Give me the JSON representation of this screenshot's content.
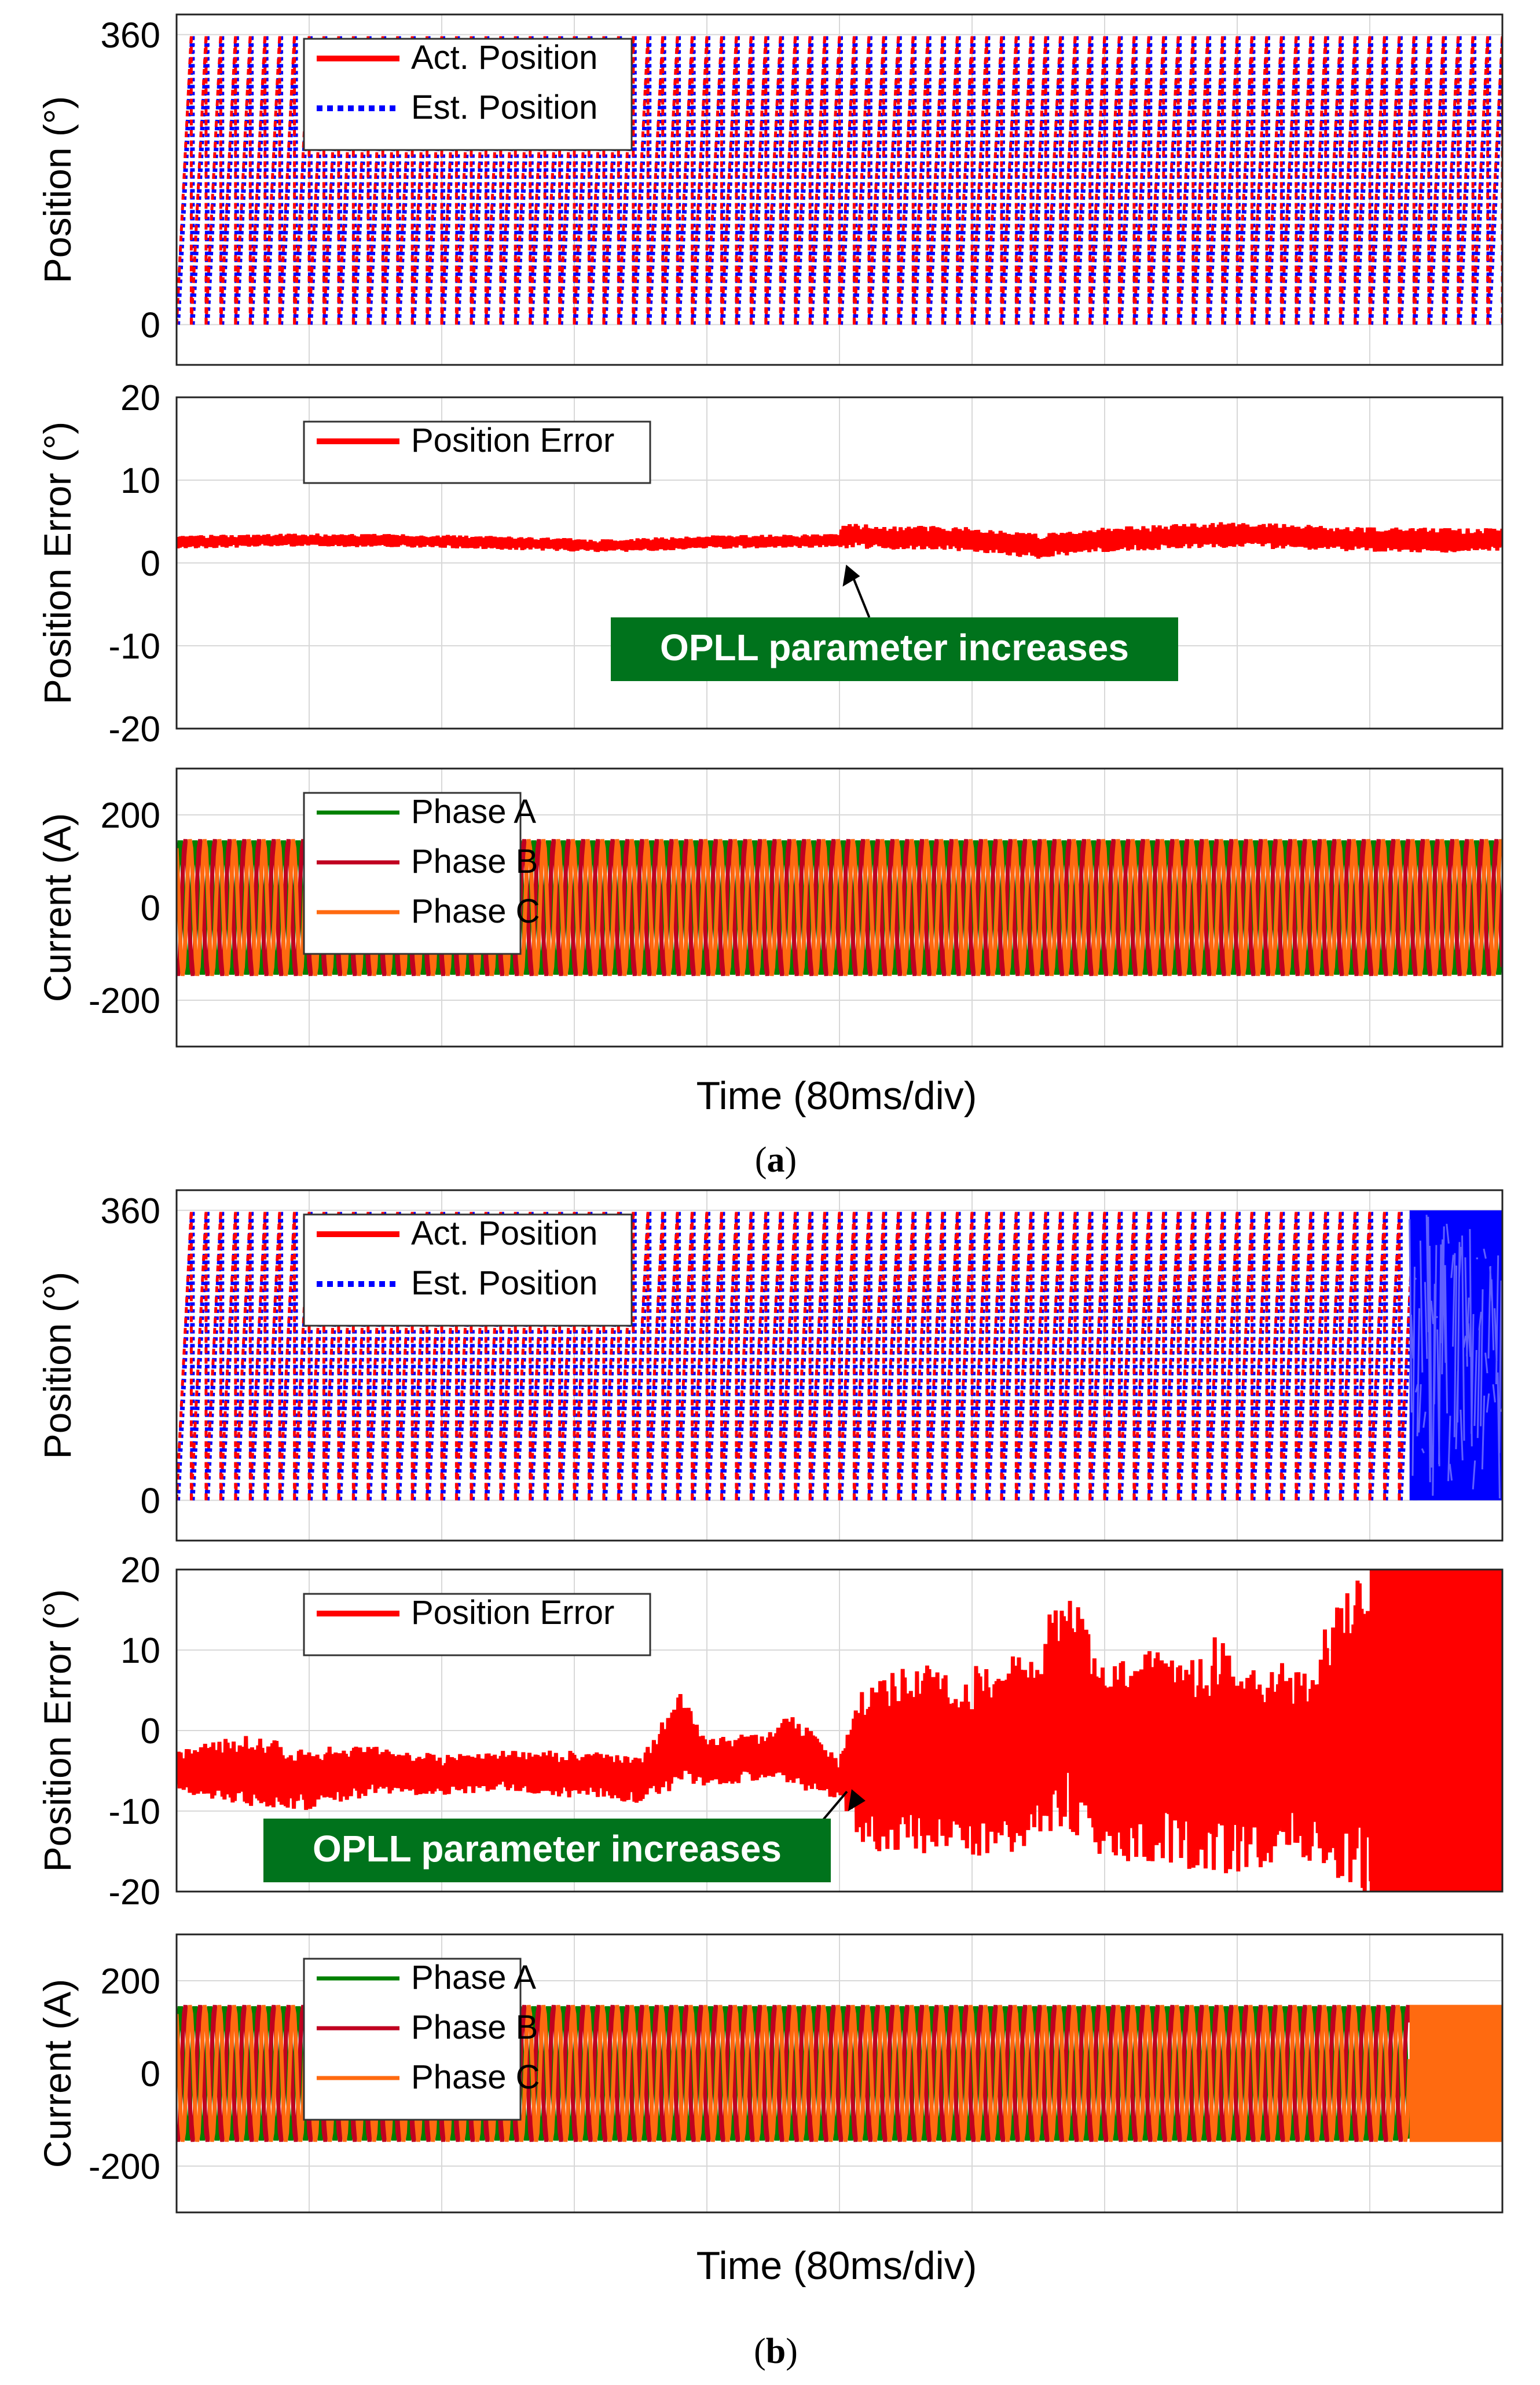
{
  "figure": {
    "panels": [
      {
        "caption": "(a)",
        "caption_open": "(",
        "caption_letter": "a",
        "caption_close": ")",
        "time_label": "Time (80ms/div)",
        "x_divisions": 10
      },
      {
        "caption": "(b)",
        "caption_open": "(",
        "caption_letter": "b",
        "caption_close": ")",
        "time_label": "Time (80ms/div)",
        "x_divisions": 10
      }
    ]
  },
  "colors": {
    "act_position": "#ff0000",
    "est_position": "#0000ff",
    "position_error": "#ff0000",
    "phase_a": "#008000",
    "phase_b": "#c00020",
    "phase_c": "#ff6a10",
    "annotation_bg": "#00731c",
    "annotation_text": "#ffffff",
    "grid": "#d8d8d8",
    "axes": "#222222"
  },
  "chart_data": [
    {
      "panel": "a",
      "type": "line",
      "title": "",
      "xlabel": "Time (80ms/div)",
      "ylabel": "Position (°)",
      "ylim": [
        -50,
        385
      ],
      "yticks": [
        0,
        360
      ],
      "ytick_labels": [
        "0",
        "360"
      ],
      "cycles_per_division": 9,
      "series": [
        {
          "name": "Act. Position",
          "style": "solid",
          "shape": "sawtooth",
          "min": 0,
          "max": 360
        },
        {
          "name": "Est. Position",
          "style": "dotted",
          "shape": "sawtooth",
          "min": 0,
          "max": 360
        }
      ],
      "legend": {
        "position": "top-left",
        "entries": [
          "Act. Position",
          "Est. Position"
        ]
      }
    },
    {
      "panel": "a",
      "type": "line",
      "title": "",
      "xlabel": "Time (80ms/div)",
      "ylabel": "Position Error (°)",
      "ylim": [
        -20,
        20
      ],
      "yticks": [
        -20,
        -10,
        0,
        10,
        20
      ],
      "ytick_labels": [
        "-20",
        "-10",
        "0",
        "10",
        "20"
      ],
      "series": [
        {
          "name": "Position Error",
          "x_div": [
            0,
            1,
            2,
            3,
            3.1,
            4,
            5,
            5.02,
            6,
            6.5,
            7,
            8,
            9,
            10
          ],
          "y": [
            2.5,
            2.8,
            2.6,
            2.2,
            2.0,
            2.5,
            2.7,
            3.3,
            2.8,
            2.0,
            2.8,
            3.4,
            2.8,
            2.7
          ],
          "band": [
            0.8,
            0.8,
            0.8,
            0.8,
            0.8,
            0.8,
            0.8,
            1.5,
            1.5,
            1.5,
            1.5,
            1.6,
            1.5,
            1.5
          ]
        }
      ],
      "legend": {
        "position": "top-left",
        "entries": [
          "Position Error"
        ]
      },
      "annotation": {
        "text": "OPLL parameter increases",
        "at_x_div": 5.05,
        "at_y": 0.5
      }
    },
    {
      "panel": "a",
      "type": "line",
      "title": "",
      "xlabel": "Time (80ms/div)",
      "ylabel": "Current (A)",
      "ylim": [
        -300,
        300
      ],
      "yticks": [
        -200,
        0,
        200
      ],
      "ytick_labels": [
        "-200",
        "0",
        "200"
      ],
      "amplitude": 148,
      "series": [
        {
          "name": "Phase A",
          "shape": "sine",
          "amplitude": 148
        },
        {
          "name": "Phase B",
          "shape": "sine",
          "amplitude": 148
        },
        {
          "name": "Phase C",
          "shape": "sine",
          "amplitude": 148
        }
      ],
      "legend": {
        "position": "top-left",
        "entries": [
          "Phase A",
          "Phase B",
          "Phase C"
        ]
      }
    },
    {
      "panel": "b",
      "type": "line",
      "title": "",
      "xlabel": "Time (80ms/div)",
      "ylabel": "Position (°)",
      "ylim": [
        -50,
        385
      ],
      "yticks": [
        0,
        360
      ],
      "ytick_labels": [
        "0",
        "360"
      ],
      "cycles_per_division": 9,
      "unstable_after_div": 9.3,
      "series": [
        {
          "name": "Act. Position",
          "style": "solid",
          "shape": "sawtooth",
          "min": 0,
          "max": 360
        },
        {
          "name": "Est. Position",
          "style": "dotted",
          "shape": "sawtooth",
          "min": 0,
          "max": 360
        }
      ],
      "legend": {
        "position": "top-left",
        "entries": [
          "Act. Position",
          "Est. Position"
        ]
      }
    },
    {
      "panel": "b",
      "type": "line",
      "title": "",
      "xlabel": "Time (80ms/div)",
      "ylabel": "Position Error (°)",
      "ylim": [
        -20,
        20
      ],
      "yticks": [
        -20,
        -10,
        0,
        10,
        20
      ],
      "ytick_labels": [
        "-20",
        "-10",
        "0",
        "10",
        "20"
      ],
      "series": [
        {
          "name": "Position Error",
          "x_div": [
            0,
            0.5,
            1,
            1.5,
            2,
            2.5,
            3,
            3.5,
            3.8,
            4,
            4.5,
            4.6,
            5,
            5.2,
            5.5,
            6,
            6.5,
            6.7,
            7,
            7.5,
            7.8,
            8,
            8.5,
            8.9,
            9.0,
            10
          ],
          "y": [
            -5,
            -5,
            -6,
            -5,
            -5.5,
            -5,
            -5.5,
            -6,
            -1,
            -4,
            -3,
            -2,
            -6,
            -4,
            -3,
            -4,
            -2,
            4,
            -4,
            -3,
            -3,
            -4,
            -4,
            0,
            0,
            0
          ],
          "band": [
            2.5,
            4.5,
            4,
            3,
            2.5,
            2.5,
            3,
            3,
            6,
            3,
            3,
            5,
            2.5,
            11,
            12,
            12,
            13,
            16,
            12,
            14,
            15,
            14,
            12,
            20,
            20,
            20
          ]
        }
      ],
      "legend": {
        "position": "top-left",
        "entries": [
          "Position Error"
        ]
      },
      "annotation": {
        "text": "OPLL parameter increases",
        "at_x_div": 5.1,
        "at_y": -7
      }
    },
    {
      "panel": "b",
      "type": "line",
      "title": "",
      "xlabel": "Time (80ms/div)",
      "ylabel": "Current (A)",
      "ylim": [
        -300,
        300
      ],
      "yticks": [
        -200,
        0,
        200
      ],
      "ytick_labels": [
        "-200",
        "0",
        "200"
      ],
      "amplitude": 148,
      "unstable_after_div": 9.3,
      "series": [
        {
          "name": "Phase A",
          "shape": "sine",
          "amplitude": 148
        },
        {
          "name": "Phase B",
          "shape": "sine",
          "amplitude": 148
        },
        {
          "name": "Phase C",
          "shape": "sine",
          "amplitude": 148
        }
      ],
      "legend": {
        "position": "top-left",
        "entries": [
          "Phase A",
          "Phase B",
          "Phase C"
        ]
      }
    }
  ]
}
